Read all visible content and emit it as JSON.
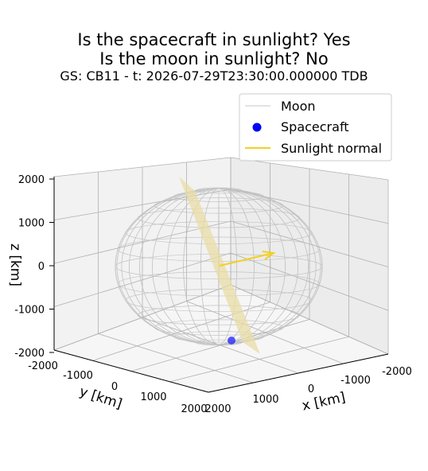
{
  "title": {
    "line1": "Is the spacecraft in sunlight? Yes",
    "line2": "Is the moon in sunlight? No",
    "subtitle": "GS: CB11 - t: 2026-07-29T23:30:00.000000 TDB"
  },
  "legend": {
    "placement": "top-right",
    "entries": [
      {
        "label": "Moon",
        "color": "#d9d9d9",
        "marker": "line"
      },
      {
        "label": "Spacecraft",
        "color": "#0000ff",
        "marker": "dot"
      },
      {
        "label": "Sunlight normal",
        "color": "#f2d021",
        "marker": "line"
      }
    ]
  },
  "chart_data": {
    "type": "scatter",
    "projection": "3d",
    "xlabel": "x [km]",
    "ylabel": "y [km]",
    "zlabel": "z [km]",
    "xlim": [
      -2000,
      2000
    ],
    "ylim": [
      -2000,
      2000
    ],
    "zlim": [
      -2000,
      2000
    ],
    "x_ticks": [
      "-2000",
      "-1000",
      "0",
      "1000",
      "2000"
    ],
    "y_ticks": [
      "-2000",
      "-1000",
      "0",
      "1000",
      "2000"
    ],
    "z_ticks": [
      "-2000",
      "-1000",
      "0",
      "1000",
      "2000"
    ],
    "grid": true,
    "series": [
      {
        "name": "Moon",
        "kind": "wireframe_sphere",
        "radius": 1737,
        "center": [
          0,
          0,
          0
        ],
        "color": "#c8c8c8"
      },
      {
        "name": "Spacecraft",
        "kind": "point",
        "x": -400,
        "y": 600,
        "z": -1800,
        "color": "#0000ff"
      },
      {
        "name": "Sunlight normal",
        "kind": "arrow",
        "from": [
          0,
          0,
          0
        ],
        "to": [
          -900,
          300,
          150
        ],
        "color": "#f2d021"
      }
    ],
    "terminator_plane": {
      "color": "#e6d9a0"
    }
  }
}
